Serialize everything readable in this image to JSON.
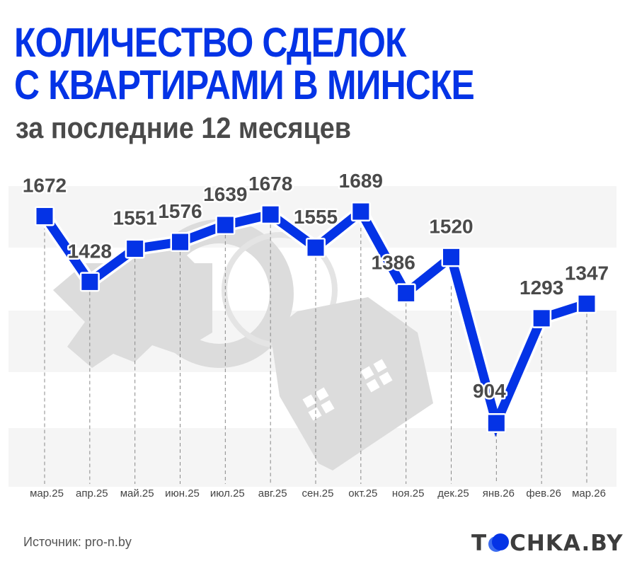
{
  "header": {
    "title_line1": "КОЛИЧЕСТВО СДЕЛОК",
    "title_line2": "С КВАРТИРАМИ В МИНСКЕ",
    "subtitle": "за последние 12 месяцев"
  },
  "footer": {
    "source": "Источник: pro-n.by",
    "logo_left": "T",
    "logo_right": "CHKA.BY"
  },
  "colors": {
    "accent": "#0433e6",
    "title": "#0433e6",
    "subtitle": "#4a4a4a",
    "label": "#4a4a4a",
    "band": "#f5f5f5",
    "watermark": "#dcdcdc",
    "gridline": "#888888"
  },
  "icons": {
    "watermark": "house-with-key-icon",
    "logo_dot": "blue-circle-logo-icon"
  },
  "chart_data": {
    "type": "line",
    "title": "Количество сделок с квартирами в Минске",
    "subtitle": "за последние 12 месяцев",
    "xlabel": "",
    "ylabel": "",
    "categories": [
      "мар.25",
      "апр.25",
      "май.25",
      "июн.25",
      "июл.25",
      "авг.25",
      "сен.25",
      "окт.25",
      "ноя.25",
      "дек.25",
      "янв.26",
      "фев.26",
      "мар.26"
    ],
    "values": [
      1672,
      1428,
      1551,
      1576,
      1639,
      1678,
      1555,
      1689,
      1386,
      1520,
      904,
      1293,
      1347
    ],
    "series": [
      {
        "name": "Количество сделок",
        "values": [
          1672,
          1428,
          1551,
          1576,
          1639,
          1678,
          1555,
          1689,
          1386,
          1520,
          904,
          1293,
          1347
        ]
      }
    ],
    "marker": "square",
    "data_labels": true,
    "grid": "vertical dashed lines per category, alternating horizontal bands",
    "legend": "none",
    "ylim": [
      800,
      1750
    ],
    "source": "pro-n.by"
  }
}
